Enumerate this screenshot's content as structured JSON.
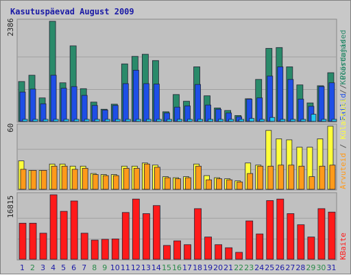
{
  "chart_data": [
    {
      "type": "bar",
      "title": "Kasutuspäevad August 2009",
      "ylabel_max": "2386",
      "categories": [
        "1",
        "2",
        "3",
        "4",
        "5",
        "6",
        "7",
        "8",
        "9",
        "10",
        "11",
        "12",
        "13",
        "14",
        "15",
        "16",
        "17",
        "18",
        "19",
        "20",
        "21",
        "22",
        "23",
        "24",
        "25",
        "26",
        "27",
        "28",
        "29",
        "30",
        "31"
      ],
      "weekend_days": [
        "2",
        "8",
        "9",
        "15",
        "16",
        "22",
        "23",
        "29",
        "30"
      ],
      "series": [
        {
          "name": "Külastajad",
          "color": "#2a8a6a",
          "values": [
            950,
            1100,
            560,
            2386,
            920,
            1800,
            780,
            460,
            290,
            410,
            1370,
            1550,
            1600,
            1450,
            230,
            640,
            480,
            1300,
            610,
            320,
            260,
            140,
            540,
            1000,
            1740,
            1760,
            1300,
            870,
            440,
            850,
            1160
          ]
        },
        {
          "name": "Failid",
          "color": "#1e4fe6",
          "values": [
            700,
            770,
            420,
            1100,
            790,
            830,
            620,
            380,
            270,
            380,
            900,
            1220,
            900,
            890,
            200,
            340,
            370,
            880,
            390,
            290,
            200,
            110,
            530,
            560,
            1080,
            1300,
            1000,
            530,
            360,
            830,
            920
          ]
        },
        {
          "name": "Pöördumised",
          "color": "#22c8f0",
          "values": [
            22,
            22,
            22,
            40,
            25,
            25,
            22,
            22,
            22,
            22,
            22,
            22,
            22,
            22,
            22,
            22,
            22,
            22,
            22,
            22,
            22,
            22,
            70,
            22,
            95,
            22,
            22,
            22,
            170,
            22,
            22
          ]
        }
      ]
    },
    {
      "type": "bar",
      "ylabel_max": "60",
      "categories": [
        "1",
        "2",
        "3",
        "4",
        "5",
        "6",
        "7",
        "8",
        "9",
        "10",
        "11",
        "12",
        "13",
        "14",
        "15",
        "16",
        "17",
        "18",
        "19",
        "20",
        "21",
        "22",
        "23",
        "24",
        "25",
        "26",
        "27",
        "28",
        "29",
        "30",
        "31"
      ],
      "series": [
        {
          "name": "Külastusi",
          "color": "#ffff3a",
          "values": [
            27,
            18,
            18,
            24,
            24,
            22,
            22,
            15,
            14,
            14,
            22,
            22,
            25,
            23,
            12,
            11,
            12,
            24,
            13,
            11,
            10,
            8,
            25,
            23,
            56,
            48,
            47,
            40,
            40,
            48,
            60
          ]
        },
        {
          "name": "Arvuteid",
          "color": "#ff9a1a",
          "values": [
            19,
            18,
            18,
            22,
            22,
            19,
            20,
            14,
            13,
            13,
            20,
            20,
            24,
            21,
            11,
            10,
            11,
            22,
            9,
            10,
            9,
            7,
            15,
            22,
            22,
            23,
            23,
            22,
            12,
            22,
            23
          ]
        }
      ]
    },
    {
      "type": "bar",
      "ylabel_max": "16815",
      "categories": [
        "1",
        "2",
        "3",
        "4",
        "5",
        "6",
        "7",
        "8",
        "9",
        "10",
        "11",
        "12",
        "13",
        "14",
        "15",
        "16",
        "17",
        "18",
        "19",
        "20",
        "21",
        "22",
        "23",
        "24",
        "25",
        "26",
        "27",
        "28",
        "29",
        "30",
        "31"
      ],
      "series": [
        {
          "name": "KBaite",
          "color": "#ff1a1a",
          "values": [
            9400,
            9400,
            6800,
            16815,
            12500,
            15200,
            6800,
            5000,
            5200,
            5300,
            12200,
            15700,
            11900,
            14000,
            3600,
            4800,
            3800,
            13200,
            5800,
            3800,
            3000,
            1800,
            10000,
            6600,
            15300,
            15700,
            11900,
            9000,
            5800,
            13200,
            12300
          ]
        }
      ]
    }
  ]
}
